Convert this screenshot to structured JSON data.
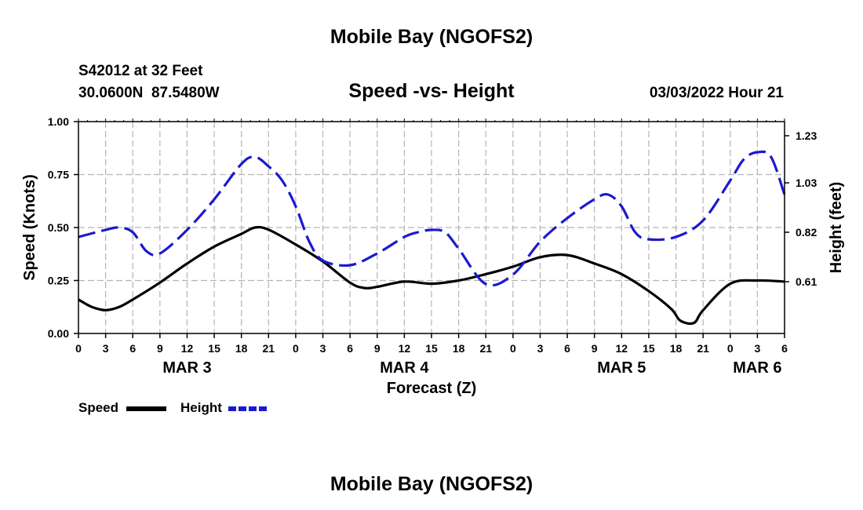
{
  "page": {
    "title": "Mobile Bay (NGOFS2)",
    "footer_title": "Mobile Bay (NGOFS2)"
  },
  "header": {
    "station": "S42012 at 32 Feet",
    "coords": "30.0600N  87.5480W",
    "subtitle": "Speed -vs- Height",
    "date": "03/03/2022 Hour 21"
  },
  "legend": {
    "speed_label": "Speed",
    "height_label": "Height"
  },
  "colors": {
    "speed": "#000000",
    "height": "#1a1ad0",
    "grid": "#b4b4b4"
  },
  "chart_data": {
    "type": "line",
    "title": "Speed -vs- Height",
    "xlabel": "Forecast (Z)",
    "ylabel": "Speed (Knots)",
    "y2label": "Height (feet)",
    "x_unit": "hours since MAR 3 00Z",
    "xlim": [
      0,
      78
    ],
    "ylim": [
      0,
      1.0
    ],
    "y2lim": [
      0.39,
      1.29
    ],
    "x_ticks": [
      0,
      3,
      6,
      9,
      12,
      15,
      18,
      21,
      24,
      27,
      30,
      33,
      36,
      39,
      42,
      45,
      48,
      51,
      54,
      57,
      60,
      63,
      66,
      69,
      72,
      75,
      78
    ],
    "x_tick_labels": [
      "0",
      "3",
      "6",
      "9",
      "12",
      "15",
      "18",
      "21",
      "0",
      "3",
      "6",
      "9",
      "12",
      "15",
      "18",
      "21",
      "0",
      "3",
      "6",
      "9",
      "12",
      "15",
      "18",
      "21",
      "0",
      "3",
      "6"
    ],
    "day_labels": [
      {
        "x": 12,
        "label": "MAR 3"
      },
      {
        "x": 36,
        "label": "MAR 4"
      },
      {
        "x": 60,
        "label": "MAR 5"
      },
      {
        "x": 75,
        "label": "MAR 6"
      }
    ],
    "y_ticks": [
      0,
      0.25,
      0.5,
      0.75,
      1.0
    ],
    "y_tick_labels": [
      "0.00",
      "0.25",
      "0.50",
      "0.75",
      "1.00"
    ],
    "y2_ticks": [
      0.61,
      0.82,
      1.03,
      1.23
    ],
    "y2_tick_labels": [
      "0.61",
      "0.82",
      "1.03",
      "1.23"
    ],
    "series": [
      {
        "name": "Speed",
        "axis": "left",
        "style": "solid",
        "x": [
          0,
          1.5,
          3,
          4.5,
          6,
          9,
          12,
          15,
          18,
          19.5,
          21,
          24,
          27,
          30,
          31.5,
          33,
          36,
          39,
          42,
          45,
          48,
          51,
          54,
          57,
          60,
          63,
          65.5,
          66.5,
          68,
          69,
          72,
          75,
          78
        ],
        "y": [
          0.16,
          0.125,
          0.11,
          0.125,
          0.16,
          0.24,
          0.33,
          0.41,
          0.47,
          0.5,
          0.49,
          0.42,
          0.34,
          0.24,
          0.215,
          0.22,
          0.245,
          0.235,
          0.25,
          0.28,
          0.315,
          0.36,
          0.37,
          0.33,
          0.28,
          0.2,
          0.115,
          0.06,
          0.05,
          0.11,
          0.235,
          0.25,
          0.245
        ]
      },
      {
        "name": "Height",
        "axis": "right",
        "style": "dashed",
        "x": [
          0,
          3,
          4.5,
          6,
          7.5,
          9,
          12,
          15,
          18,
          19.5,
          21,
          22.5,
          24,
          25.5,
          27,
          30,
          33,
          36,
          37.5,
          39,
          40.5,
          42,
          45,
          48,
          51,
          54,
          57,
          58.5,
          60,
          61.5,
          63,
          66,
          69,
          72,
          73.5,
          75,
          76.5,
          78
        ],
        "y": [
          0.8,
          0.83,
          0.84,
          0.82,
          0.74,
          0.73,
          0.83,
          0.96,
          1.11,
          1.14,
          1.1,
          1.04,
          0.93,
          0.78,
          0.7,
          0.68,
          0.73,
          0.8,
          0.82,
          0.83,
          0.82,
          0.75,
          0.6,
          0.64,
          0.78,
          0.88,
          0.96,
          0.98,
          0.93,
          0.82,
          0.79,
          0.8,
          0.87,
          1.04,
          1.13,
          1.16,
          1.14,
          0.98
        ]
      }
    ]
  }
}
